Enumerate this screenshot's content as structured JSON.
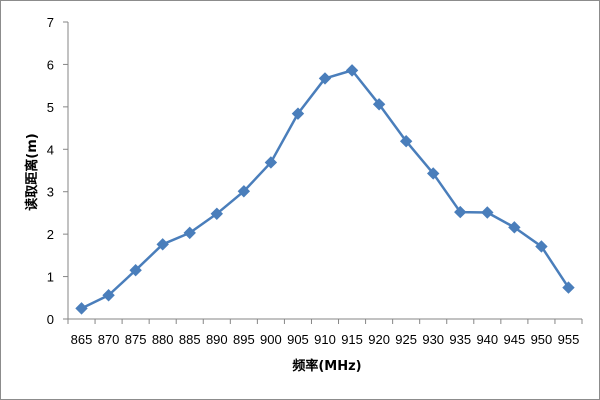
{
  "chart_data": {
    "type": "line",
    "title": "",
    "xlabel": "频率(MHz)",
    "ylabel": "读取距离(m)",
    "categories": [
      "865",
      "870",
      "875",
      "880",
      "885",
      "890",
      "895",
      "900",
      "905",
      "910",
      "915",
      "920",
      "925",
      "930",
      "935",
      "940",
      "945",
      "950",
      "955"
    ],
    "series": [
      {
        "values": [
          0.25,
          0.56,
          1.15,
          1.76,
          2.03,
          2.48,
          3.01,
          3.69,
          4.84,
          5.67,
          5.86,
          5.06,
          4.19,
          3.43,
          2.52,
          2.51,
          2.16,
          1.71,
          0.74
        ],
        "color": "#4a7ebb",
        "marker": "diamond"
      }
    ],
    "ylim": [
      0,
      7
    ],
    "yticks": [
      0,
      1,
      2,
      3,
      4,
      5,
      6,
      7
    ],
    "grid": false,
    "legend": "none"
  }
}
